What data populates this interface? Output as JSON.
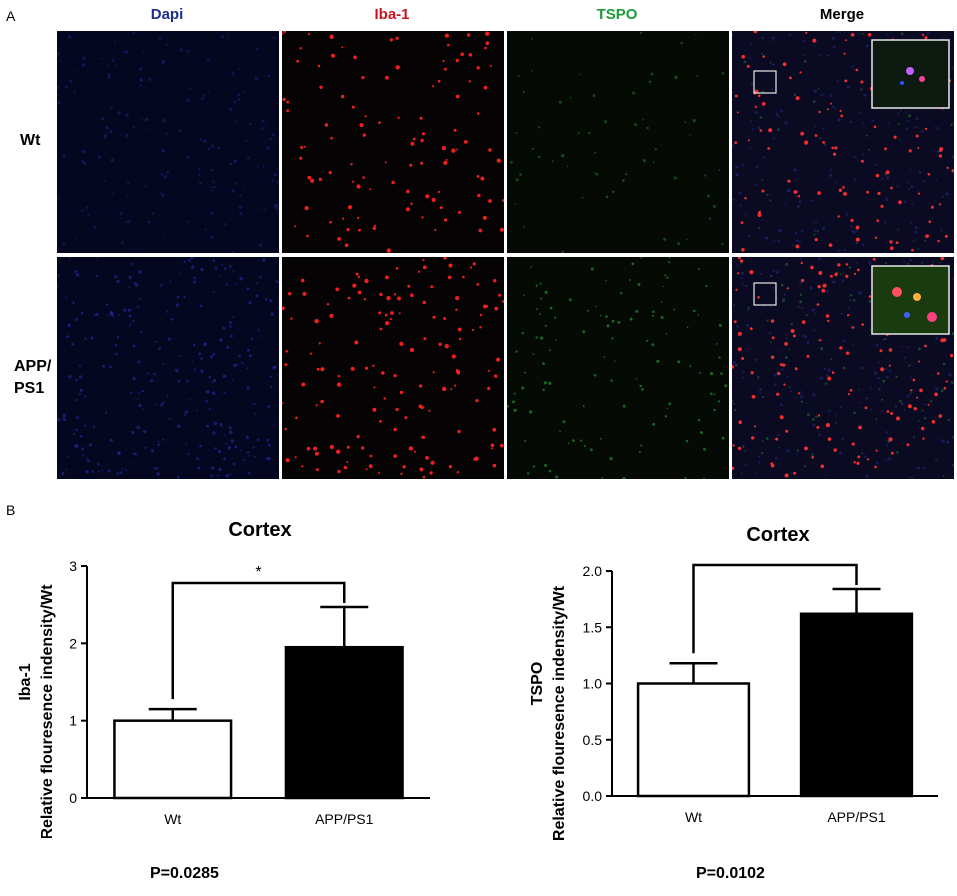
{
  "panel_a": {
    "letter": "A",
    "columns": [
      {
        "label": "Dapi",
        "color": "#1c2f8c"
      },
      {
        "label": "Iba-1",
        "color": "#c8141e"
      },
      {
        "label": "TSPO",
        "color": "#1e9a3c"
      },
      {
        "label": "Merge",
        "color": "#000000"
      }
    ],
    "rows": [
      {
        "label_lines": [
          "Wt"
        ]
      },
      {
        "label_lines": [
          "APP/",
          "PS1"
        ]
      }
    ]
  },
  "panel_b": {
    "letter": "B",
    "p_values": [
      "P=0.0285",
      "P=0.0102"
    ]
  },
  "chart_data": [
    {
      "type": "bar",
      "title": "Cortex",
      "categories": [
        "Wt",
        "APP/PS1"
      ],
      "values": [
        1.0,
        1.95
      ],
      "errors": [
        0.15,
        0.52
      ],
      "bar_colors": [
        "#ffffff",
        "#000000"
      ],
      "ylabel_lines": [
        "Iba-1",
        "Relative flouresence indensity/Wt"
      ],
      "ylim": [
        0,
        3
      ],
      "yticks": [
        "0",
        "1",
        "2",
        "3"
      ],
      "significance": "*"
    },
    {
      "type": "bar",
      "title": "Cortex",
      "categories": [
        "Wt",
        "APP/PS1"
      ],
      "values": [
        1.0,
        1.62
      ],
      "errors": [
        0.18,
        0.22
      ],
      "bar_colors": [
        "#ffffff",
        "#000000"
      ],
      "ylabel_lines": [
        "TSPO",
        "Relative flouresence indensity/Wt"
      ],
      "ylim": [
        0,
        2
      ],
      "yticks": [
        "0.0",
        "0.5",
        "1.0",
        "1.5",
        "2.0"
      ],
      "significance": "*"
    }
  ]
}
